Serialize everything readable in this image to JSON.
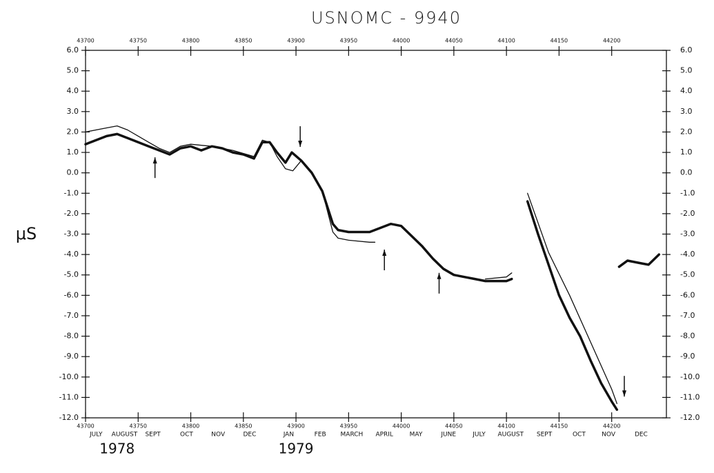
{
  "chart_data": {
    "type": "line",
    "title": "USNOMC - 9940",
    "ylabel": "μS",
    "xlim": [
      43700,
      44252
    ],
    "ylim": [
      -12,
      6
    ],
    "xticks": [
      43700,
      43750,
      43800,
      43850,
      43900,
      43950,
      44000,
      44050,
      44100,
      44150,
      44200
    ],
    "yticks": [
      {
        "value": 6,
        "label": "6.0"
      },
      {
        "value": 5,
        "label": "5.0"
      },
      {
        "value": 4,
        "label": "4.0"
      },
      {
        "value": 3,
        "label": "3.0"
      },
      {
        "value": 2,
        "label": "2.0"
      },
      {
        "value": 1,
        "label": "1.0"
      },
      {
        "value": 0,
        "label": "0.0"
      },
      {
        "value": -1,
        "label": "-1.0"
      },
      {
        "value": -2,
        "label": "-2.0"
      },
      {
        "value": -3,
        "label": "-3.0"
      },
      {
        "value": -4,
        "label": "-4.0"
      },
      {
        "value": -5,
        "label": "-5.0"
      },
      {
        "value": -6,
        "label": "-6.0"
      },
      {
        "value": -7,
        "label": "-7.0"
      },
      {
        "value": -8,
        "label": "-8.0"
      },
      {
        "value": -9,
        "label": "-9.0"
      },
      {
        "value": -10,
        "label": "-10.0"
      },
      {
        "value": -11,
        "label": "-11.0"
      },
      {
        "value": -12,
        "label": "-12.0"
      }
    ],
    "month_labels": [
      {
        "value": 43710,
        "label": "JULY"
      },
      {
        "value": 43737,
        "label": "AUGUST"
      },
      {
        "value": 43764,
        "label": "SEPT"
      },
      {
        "value": 43796,
        "label": "OCT"
      },
      {
        "value": 43826,
        "label": "NOV"
      },
      {
        "value": 43856,
        "label": "DEC"
      },
      {
        "value": 43893,
        "label": "JAN"
      },
      {
        "value": 43923,
        "label": "FEB"
      },
      {
        "value": 43953,
        "label": "MARCH"
      },
      {
        "value": 43984,
        "label": "APRIL"
      },
      {
        "value": 44014,
        "label": "MAY"
      },
      {
        "value": 44045,
        "label": "JUNE"
      },
      {
        "value": 44074,
        "label": "JULY"
      },
      {
        "value": 44104,
        "label": "AUGUST"
      },
      {
        "value": 44136,
        "label": "SEPT"
      },
      {
        "value": 44169,
        "label": "OCT"
      },
      {
        "value": 44197,
        "label": "NOV"
      },
      {
        "value": 44228,
        "label": "DEC"
      }
    ],
    "year_labels": [
      {
        "value": 43730,
        "label": "1978"
      },
      {
        "value": 43900,
        "label": "1979"
      }
    ],
    "arrows": [
      {
        "x": 43766,
        "y": 0.76,
        "direction": "up"
      },
      {
        "x": 43904,
        "y": 1.27,
        "direction": "down"
      },
      {
        "x": 43984,
        "y": -3.76,
        "direction": "up"
      },
      {
        "x": 44036,
        "y": -4.9,
        "direction": "up"
      },
      {
        "x": 44212,
        "y": -10.96,
        "direction": "down"
      }
    ],
    "series": [
      {
        "color": "#111111",
        "line_width": 3.5,
        "x": [
          43700,
          43710,
          43720,
          43730,
          43740,
          43750,
          43760,
          43770,
          43780,
          43790,
          43800,
          43810,
          43820,
          43830,
          43840,
          43850,
          43860,
          43868,
          43875,
          43882,
          43890,
          43896,
          43905,
          43915,
          43925,
          43935,
          43940,
          43950,
          43960,
          43970,
          43980,
          43990,
          44000,
          44010,
          44020,
          44030,
          44040,
          44050,
          44060,
          44070,
          44080,
          44090,
          44100,
          44105,
          44112,
          44120,
          44130,
          44140,
          44150,
          44160,
          44170,
          44180,
          44190,
          44200,
          44205,
          44206,
          44207,
          44215,
          44225,
          44235,
          44245
        ],
        "values": [
          1.4,
          1.6,
          1.8,
          1.9,
          1.7,
          1.5,
          1.3,
          1.1,
          0.9,
          1.2,
          1.3,
          1.1,
          1.3,
          1.2,
          1.0,
          0.9,
          0.7,
          1.5,
          1.5,
          1.0,
          0.5,
          1.0,
          0.6,
          0.0,
          -0.9,
          -2.5,
          -2.8,
          -2.9,
          -2.9,
          -2.9,
          -2.7,
          -2.5,
          -2.6,
          -3.1,
          -3.6,
          -4.2,
          -4.7,
          -5.0,
          -5.1,
          -5.2,
          -5.3,
          -5.3,
          -5.3,
          -5.2,
          null,
          -1.4,
          -3.0,
          -4.5,
          -6.0,
          -7.1,
          -8.0,
          -9.2,
          -10.3,
          -11.2,
          -11.6,
          null,
          -4.6,
          -4.3,
          -4.4,
          -4.5,
          -4.0
        ]
      },
      {
        "color": "#111111",
        "line_width": 1.3,
        "x": [
          43700,
          43720,
          43730,
          43740,
          43750,
          43760,
          43770,
          43780,
          43790,
          43800,
          43820,
          43840,
          43860,
          43868,
          43875,
          43882,
          43890,
          43897,
          43905,
          43915,
          43925,
          43935,
          43940,
          43950,
          43970,
          43975,
          43990,
          44080,
          44100,
          44105,
          44112,
          44120,
          44140,
          44160,
          44180,
          44200,
          44205
        ],
        "values": [
          2.0,
          2.2,
          2.3,
          2.1,
          1.8,
          1.5,
          1.2,
          1.0,
          1.3,
          1.4,
          1.3,
          1.1,
          0.8,
          1.6,
          1.5,
          0.8,
          0.2,
          0.1,
          0.6,
          0.0,
          -0.9,
          -2.9,
          -3.2,
          -3.3,
          -3.4,
          -3.4,
          null,
          -5.2,
          -5.1,
          -4.9,
          null,
          -1.0,
          -3.9,
          -6.0,
          -8.3,
          -10.6,
          -11.3
        ]
      }
    ]
  }
}
